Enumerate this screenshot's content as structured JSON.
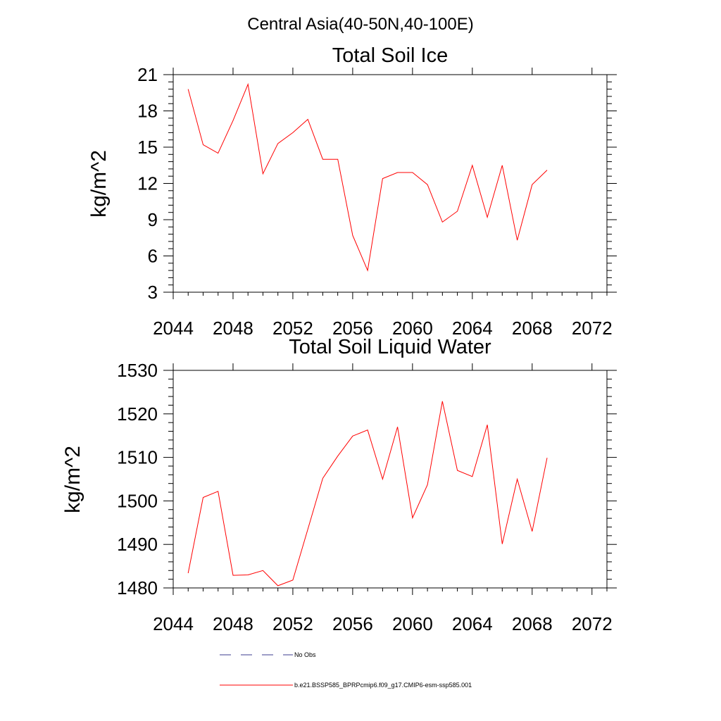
{
  "figure": {
    "title": "Central Asia(40-50N,40-100E)"
  },
  "chart_data": [
    {
      "type": "line",
      "title": "Total Soil Ice",
      "ylabel": "kg/m^2",
      "xlabel": "",
      "xlim": [
        2044,
        2073
      ],
      "ylim": [
        3,
        21
      ],
      "xticks": [
        2044,
        2048,
        2052,
        2056,
        2060,
        2064,
        2068,
        2072
      ],
      "yticks": [
        3,
        6,
        9,
        12,
        15,
        18,
        21
      ],
      "series": [
        {
          "name": "b.e21.BSSP585_BPRPcmip6.f09_g17.CMIP6-esm-ssp585.001",
          "color": "#ff0000",
          "x": [
            2045,
            2046,
            2047,
            2048,
            2049,
            2050,
            2051,
            2052,
            2053,
            2054,
            2055,
            2056,
            2057,
            2058,
            2059,
            2060,
            2061,
            2062,
            2063,
            2064,
            2065,
            2066,
            2067,
            2068,
            2069
          ],
          "y": [
            19.8,
            15.2,
            14.5,
            17.2,
            20.2,
            12.8,
            15.3,
            16.2,
            17.3,
            14.0,
            14.0,
            7.7,
            4.8,
            12.4,
            12.9,
            12.9,
            11.9,
            8.8,
            9.7,
            13.5,
            9.2,
            13.5,
            7.3,
            11.9,
            13.1
          ]
        }
      ]
    },
    {
      "type": "line",
      "title": "Total Soil Liquid Water",
      "ylabel": "kg/m^2",
      "xlabel": "",
      "xlim": [
        2044,
        2073
      ],
      "ylim": [
        1480,
        1530
      ],
      "xticks": [
        2044,
        2048,
        2052,
        2056,
        2060,
        2064,
        2068,
        2072
      ],
      "yticks": [
        1480,
        1490,
        1500,
        1510,
        1520,
        1530
      ],
      "series": [
        {
          "name": "b.e21.BSSP585_BPRPcmip6.f09_g17.CMIP6-esm-ssp585.001",
          "color": "#ff0000",
          "x": [
            2045,
            2046,
            2047,
            2048,
            2049,
            2050,
            2051,
            2052,
            2053,
            2054,
            2055,
            2056,
            2057,
            2058,
            2059,
            2060,
            2061,
            2062,
            2063,
            2064,
            2065,
            2066,
            2067,
            2068,
            2069
          ],
          "y": [
            1483.4,
            1500.8,
            1502.2,
            1482.9,
            1483.0,
            1484.0,
            1480.5,
            1481.8,
            1493.5,
            1505.2,
            1510.3,
            1514.9,
            1516.3,
            1505.0,
            1517.0,
            1496.1,
            1503.7,
            1522.9,
            1507.0,
            1505.6,
            1517.5,
            1490.1,
            1505.0,
            1493.0,
            1509.9
          ]
        }
      ]
    }
  ],
  "legend": {
    "placement": "bottom-center",
    "entries": [
      {
        "label": "No Obs",
        "color": "#3d3d8f",
        "style": "dashed"
      },
      {
        "label": "b.e21.BSSP585_BPRPcmip6.f09_g17.CMIP6-esm-ssp585.001",
        "color": "#ff0000",
        "style": "solid"
      }
    ]
  }
}
